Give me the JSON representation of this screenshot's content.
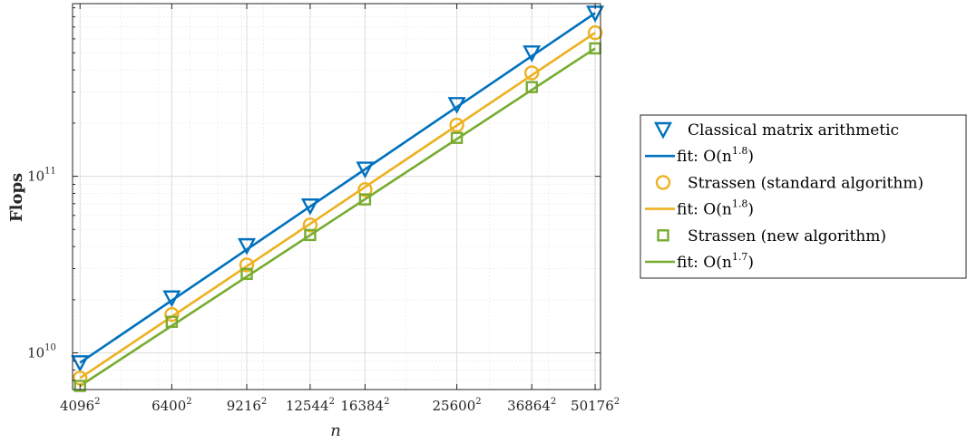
{
  "chart_data": {
    "type": "line",
    "xscale": "log",
    "yscale": "log",
    "grid": true,
    "minor_grid": true,
    "xlabel": "n",
    "ylabel": "Flops",
    "x": [
      4096,
      6400,
      9216,
      12544,
      16384,
      25600,
      36864,
      50176
    ],
    "x_tick_labels": [
      "4096",
      "6400",
      "9216",
      "12544",
      "16384",
      "25600",
      "36864",
      "50176"
    ],
    "x_tick_exponent": "2",
    "xlim": [
      3950,
      51500
    ],
    "ylim": [
      6200000000.0,
      950000000000.0
    ],
    "y_ticks": [
      {
        "value": 10000000000.0,
        "base": "10",
        "exp": "10"
      },
      {
        "value": 100000000000.0,
        "base": "10",
        "exp": "11"
      }
    ],
    "legend_position": "right-outside",
    "series": [
      {
        "name": "Classical matrix arithmetic",
        "marker": "triangle-down",
        "color": "#0072BD",
        "values": [
          8800000000.0,
          20500000000.0,
          40500000000.0,
          68000000000.0,
          110000000000.0,
          255000000000.0,
          500000000000.0,
          840000000000.0
        ]
      },
      {
        "name": "Strassen (standard algorithm)",
        "marker": "circle",
        "color": "#EDB120",
        "values": [
          7200000000.0,
          16500000000.0,
          31500000000.0,
          53000000000.0,
          84000000000.0,
          195000000000.0,
          385000000000.0,
          650000000000.0
        ]
      },
      {
        "name": "Strassen (new algorithm)",
        "marker": "square",
        "color": "#77AC30",
        "values": [
          6500000000.0,
          15000000000.0,
          28000000000.0,
          46500000000.0,
          74000000000.0,
          165000000000.0,
          320000000000.0,
          530000000000.0
        ]
      }
    ],
    "fits": [
      {
        "series": 0,
        "label_prefix": "fit: O(n",
        "exp": "1.8",
        "label_suffix": ")",
        "color": "#0072BD",
        "endpoints": [
          8800000000.0,
          840000000000.0
        ]
      },
      {
        "series": 1,
        "label_prefix": "fit: O(n",
        "exp": "1.8",
        "label_suffix": ")",
        "color": "#EDB120",
        "endpoints": [
          7200000000.0,
          650000000000.0
        ]
      },
      {
        "series": 2,
        "label_prefix": "fit: O(n",
        "exp": "1.7",
        "label_suffix": ")",
        "color": "#77AC30",
        "endpoints": [
          6500000000.0,
          530000000000.0
        ]
      }
    ]
  }
}
